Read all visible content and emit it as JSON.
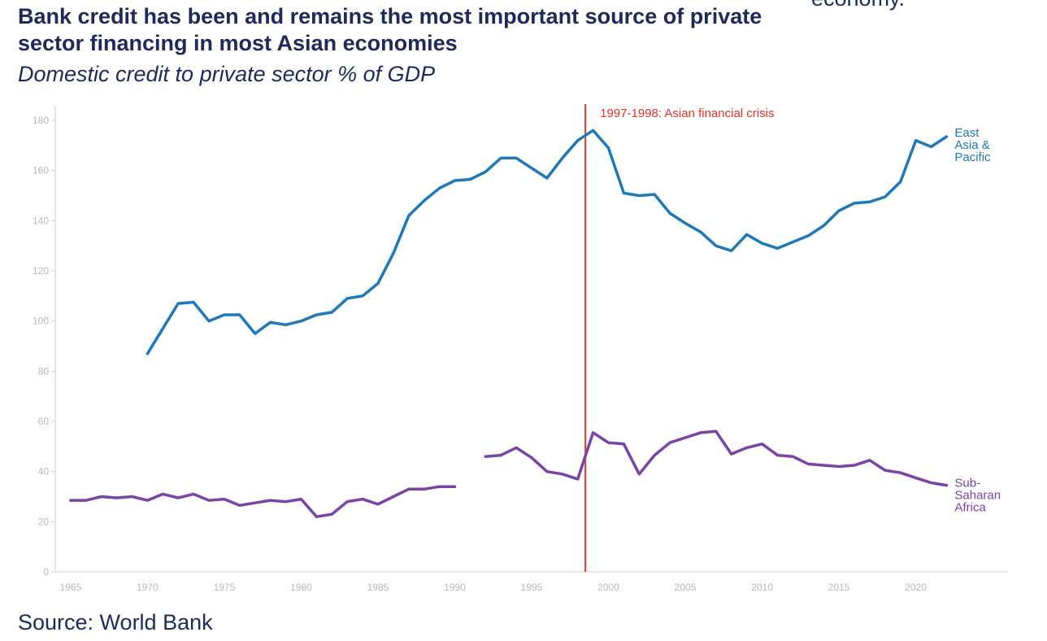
{
  "page": {
    "title": "Bank credit has been and remains the most important source of private sector financing in most Asian economies",
    "side_text": "economy.",
    "subtitle": "Domestic credit to private sector % of GDP",
    "source": "Source: World Bank"
  },
  "colors": {
    "east_asia": "#1f78b8",
    "ssa": "#7a43a6",
    "crisis_line": "#e0342a",
    "axis": "#cfcfcf",
    "tick": "#b8b8b8"
  },
  "chart_data": {
    "type": "line",
    "title": "Domestic credit to private sector % of GDP",
    "xlabel": "",
    "ylabel": "",
    "xlim": [
      1964,
      2026
    ],
    "ylim": [
      0,
      180
    ],
    "x_ticks": [
      1965,
      1970,
      1975,
      1980,
      1985,
      1990,
      1995,
      2000,
      2005,
      2010,
      2015,
      2020
    ],
    "y_ticks": [
      0,
      20,
      40,
      60,
      80,
      100,
      120,
      140,
      160,
      180
    ],
    "grid": false,
    "annotations": [
      {
        "label": "1997-1998: Asian financial crisis",
        "x": 1998.5
      }
    ],
    "series": [
      {
        "name": "East Asia & Pacific",
        "label_lines": [
          "East",
          "Asia &",
          "Pacific"
        ],
        "color_key": "east_asia",
        "points": [
          [
            1970,
            87
          ],
          [
            1971,
            97
          ],
          [
            1972,
            107
          ],
          [
            1973,
            107.5
          ],
          [
            1974,
            100
          ],
          [
            1975,
            102.5
          ],
          [
            1976,
            102.5
          ],
          [
            1977,
            95
          ],
          [
            1978,
            99.5
          ],
          [
            1979,
            98.5
          ],
          [
            1980,
            100
          ],
          [
            1981,
            102.5
          ],
          [
            1982,
            103.5
          ],
          [
            1983,
            109
          ],
          [
            1984,
            110
          ],
          [
            1985,
            115
          ],
          [
            1986,
            127
          ],
          [
            1987,
            142
          ],
          [
            1988,
            148
          ],
          [
            1989,
            153
          ],
          [
            1990,
            156
          ],
          [
            1991,
            156.5
          ],
          [
            1992,
            159.5
          ],
          [
            1993,
            165
          ],
          [
            1994,
            165
          ],
          [
            1995,
            161
          ],
          [
            1996,
            157
          ],
          [
            1997,
            165
          ],
          [
            1998,
            172
          ],
          [
            1999,
            176
          ],
          [
            2000,
            169
          ],
          [
            2001,
            151
          ],
          [
            2002,
            150
          ],
          [
            2003,
            150.5
          ],
          [
            2004,
            143
          ],
          [
            2005,
            139
          ],
          [
            2006,
            135.5
          ],
          [
            2007,
            130
          ],
          [
            2008,
            128
          ],
          [
            2009,
            134.5
          ],
          [
            2010,
            131
          ],
          [
            2011,
            129
          ],
          [
            2012,
            131.5
          ],
          [
            2013,
            134
          ],
          [
            2014,
            138
          ],
          [
            2015,
            144
          ],
          [
            2016,
            147
          ],
          [
            2017,
            147.5
          ],
          [
            2018,
            149.5
          ],
          [
            2019,
            155.5
          ],
          [
            2020,
            172
          ],
          [
            2021,
            169.5
          ],
          [
            2022,
            173.5
          ]
        ]
      },
      {
        "name": "Sub-Saharan Africa",
        "label_lines": [
          "Sub-",
          "Saharan",
          "Africa"
        ],
        "color_key": "ssa",
        "points": [
          [
            1965,
            28.5
          ],
          [
            1966,
            28.5
          ],
          [
            1967,
            30
          ],
          [
            1968,
            29.5
          ],
          [
            1969,
            30
          ],
          [
            1970,
            28.5
          ],
          [
            1971,
            31
          ],
          [
            1972,
            29.5
          ],
          [
            1973,
            31
          ],
          [
            1974,
            28.5
          ],
          [
            1975,
            29
          ],
          [
            1976,
            26.5
          ],
          [
            1977,
            27.5
          ],
          [
            1978,
            28.5
          ],
          [
            1979,
            28
          ],
          [
            1980,
            29
          ],
          [
            1981,
            22
          ],
          [
            1982,
            23
          ],
          [
            1983,
            28
          ],
          [
            1984,
            29
          ],
          [
            1985,
            27
          ],
          [
            1986,
            30
          ],
          [
            1987,
            33
          ],
          [
            1988,
            33
          ],
          [
            1989,
            34
          ],
          [
            1990,
            34
          ],
          null,
          [
            1992,
            46
          ],
          [
            1993,
            46.5
          ],
          [
            1994,
            49.5
          ],
          [
            1995,
            45.5
          ],
          [
            1996,
            40
          ],
          [
            1997,
            39
          ],
          [
            1998,
            37
          ],
          [
            1999,
            55.5
          ],
          [
            2000,
            51.5
          ],
          [
            2001,
            51
          ],
          [
            2002,
            39
          ],
          [
            2003,
            46.5
          ],
          [
            2004,
            51.5
          ],
          [
            2005,
            53.5
          ],
          [
            2006,
            55.5
          ],
          [
            2007,
            56
          ],
          [
            2008,
            47
          ],
          [
            2009,
            49.5
          ],
          [
            2010,
            51
          ],
          [
            2011,
            46.5
          ],
          [
            2012,
            46
          ],
          [
            2013,
            43
          ],
          [
            2014,
            42.5
          ],
          [
            2015,
            42
          ],
          [
            2016,
            42.5
          ],
          [
            2017,
            44.5
          ],
          [
            2018,
            40.5
          ],
          [
            2019,
            39.5
          ],
          [
            2020,
            37.5
          ],
          [
            2021,
            35.5
          ],
          [
            2022,
            34.5
          ]
        ]
      }
    ]
  }
}
